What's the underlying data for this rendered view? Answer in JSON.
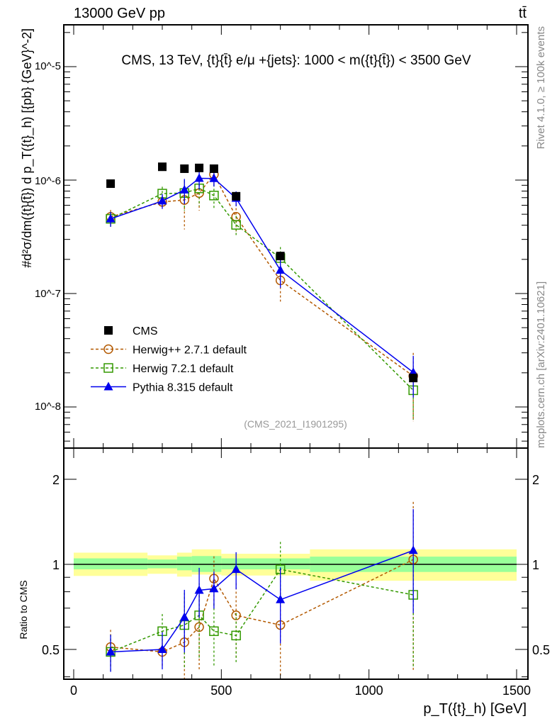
{
  "header": {
    "left": "13000 GeV pp",
    "right": "tt̄"
  },
  "side_labels": {
    "rivet": "Rivet 4.1.0, ≥ 100k events",
    "mcplots": "mcplots.cern.ch [arXiv:2401.10621]"
  },
  "colors": {
    "cms": "#000000",
    "herwigpp": "#b35900",
    "herwig7": "#339900",
    "pythia": "#0000ee",
    "band_yellow": "#ffff99",
    "band_green": "#99ff99"
  },
  "chart_data": [
    {
      "type": "scatter",
      "title": "CMS, 13 TeV, {t}{t̄} e/μ +{jets}: 1000 < m({t}{t̄}) < 3500 GeV",
      "annotation": "(CMS_2021_I1901295)",
      "ylabel": "#d²σ/dm({t}{t̄}) d p_T({t}_h) [{pb} {GeV}^-2]",
      "xlabel": "p_T({t}_h) [GeV]",
      "yscale": "log",
      "ylim": [
        4.2e-09,
        2.3e-05
      ],
      "xlim": [
        -35,
        1540
      ],
      "ytick_labels": [
        "10^-8",
        "10^-7",
        "10^-6",
        "10^-5"
      ],
      "legend_placement": "bottom-left",
      "x": [
        125,
        300,
        375,
        425,
        475,
        550,
        700,
        1150
      ],
      "bin_edges": [
        0,
        250,
        350,
        400,
        450,
        500,
        600,
        800,
        1500
      ],
      "series": [
        {
          "key": "cms",
          "name": "CMS",
          "values": [
            9.3e-07,
            1.31e-06,
            1.26e-06,
            1.28e-06,
            1.26e-06,
            7.2e-07,
            2.14e-07,
            1.8e-08
          ]
        },
        {
          "key": "herwigpp",
          "name": "Herwig++ 2.7.1 default",
          "ratio": [
            0.51,
            0.49,
            0.53,
            0.6,
            0.89,
            0.66,
            0.61,
            1.04
          ],
          "rel_err": [
            0.15,
            0.12,
            0.45,
            0.3,
            0.2,
            0.3,
            0.35,
            0.6
          ]
        },
        {
          "key": "herwig7",
          "name": "Herwig 7.2.1 default",
          "ratio": [
            0.49,
            0.58,
            0.61,
            0.66,
            0.58,
            0.56,
            0.96,
            0.78
          ],
          "rel_err": [
            0.15,
            0.15,
            0.3,
            0.3,
            0.25,
            0.2,
            0.25,
            0.45
          ]
        },
        {
          "key": "pythia",
          "name": "Pythia 8.315 default",
          "ratio": [
            0.49,
            0.5,
            0.65,
            0.81,
            0.82,
            0.96,
            0.75,
            1.12
          ],
          "rel_err": [
            0.15,
            0.15,
            0.25,
            0.2,
            0.15,
            0.15,
            0.3,
            0.4
          ]
        }
      ]
    },
    {
      "type": "scatter",
      "ylabel": "Ratio to CMS",
      "xlabel": "p_T({t}_h) [GeV]",
      "yscale": "log",
      "ylim": [
        0.39,
        2.58
      ],
      "yticks": [
        0.5,
        1,
        2
      ],
      "ytick_labels": [
        "0.5",
        "1",
        "2"
      ],
      "xticks": [
        0,
        500,
        1000,
        1500
      ],
      "xtick_labels": [
        "0",
        "500",
        "1000",
        "1500"
      ],
      "band_yellow": [
        [
          0.91,
          1.1
        ],
        [
          0.926,
          1.076
        ],
        [
          0.905,
          1.1
        ],
        [
          0.92,
          1.13
        ],
        [
          0.92,
          1.13
        ],
        [
          0.913,
          1.09
        ],
        [
          0.913,
          1.09
        ],
        [
          0.875,
          1.13
        ]
      ],
      "band_green": [
        [
          0.96,
          1.05
        ],
        [
          0.968,
          1.04
        ],
        [
          0.953,
          1.065
        ],
        [
          0.94,
          1.07
        ],
        [
          0.94,
          1.07
        ],
        [
          0.96,
          1.05
        ],
        [
          0.96,
          1.05
        ],
        [
          0.94,
          1.065
        ]
      ]
    }
  ]
}
